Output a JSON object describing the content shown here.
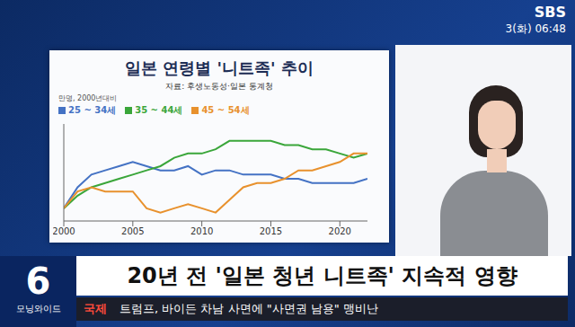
{
  "chart_data": {
    "type": "line",
    "title": "일본 연령별 '니트족' 추이",
    "subtitle": "자료: 후생노동성·일본 통계청",
    "y_label": "만명, 2000년대비",
    "x": [
      2000,
      2001,
      2002,
      2003,
      2004,
      2005,
      2006,
      2007,
      2008,
      2009,
      2010,
      2011,
      2012,
      2013,
      2014,
      2015,
      2016,
      2017,
      2018,
      2019,
      2020,
      2021,
      2022
    ],
    "series": [
      {
        "name": "25 ~ 34세",
        "color": "#4472c4",
        "values": [
          0,
          5,
          8,
          9,
          10,
          11,
          10,
          9,
          9,
          10,
          8,
          9,
          9,
          8,
          8,
          8,
          7,
          7,
          6,
          6,
          6,
          6,
          7
        ]
      },
      {
        "name": "35 ~ 44세",
        "color": "#3aa63a",
        "values": [
          0,
          3,
          5,
          6,
          7,
          8,
          9,
          10,
          12,
          13,
          13,
          14,
          16,
          16,
          16,
          16,
          15,
          15,
          14,
          14,
          13,
          12,
          13
        ]
      },
      {
        "name": "45 ~ 54세",
        "color": "#e8912d",
        "values": [
          0,
          4,
          5,
          4,
          4,
          4,
          0,
          -1,
          0,
          1,
          0,
          -1,
          2,
          5,
          6,
          6,
          7,
          9,
          9,
          10,
          11,
          13,
          13
        ]
      }
    ],
    "xlim": [
      2000,
      2022
    ],
    "xticks": [
      2000,
      2005,
      2010,
      2015,
      2020
    ],
    "ylim": [
      -3,
      20
    ],
    "grid": false,
    "legend": "top-left",
    "tick_labels": "x"
  },
  "screen": {
    "channel": "SBS",
    "datetime": "3(화) 06:48",
    "headline": "20년 전 '일본 청년 니트족' 지속적 영향",
    "program_number": "6",
    "program_name": "모닝와이드",
    "ticker_tag": "국제",
    "ticker_text": "트럼프, 바이든 차남 사면에 \"사면권 남용\" 맹비난"
  }
}
